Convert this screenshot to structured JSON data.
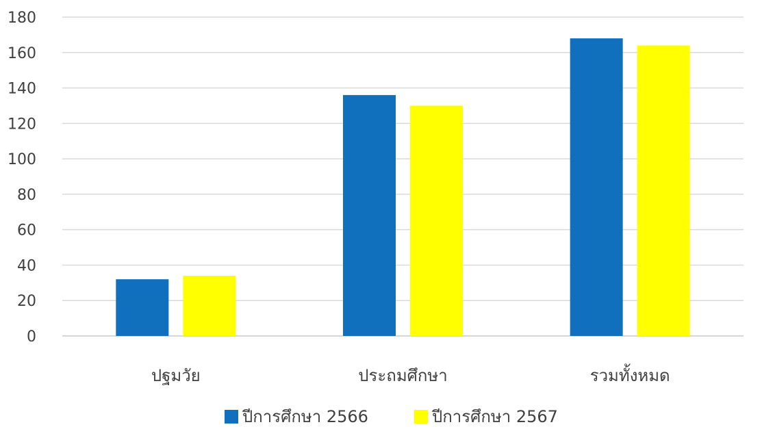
{
  "chart_data": {
    "type": "bar",
    "categories": [
      "ปฐมวัย",
      "ประถมศึกษา",
      "รวมทั้งหมด"
    ],
    "series": [
      {
        "name": "ปีการศึกษา 2566",
        "values": [
          32,
          136,
          168
        ],
        "color": "#1170BD"
      },
      {
        "name": "ปีการศึกษา 2567",
        "values": [
          34,
          130,
          164
        ],
        "color": "#FFFF00"
      }
    ],
    "ylim": [
      0,
      180
    ],
    "yticks": [
      0,
      20,
      40,
      60,
      80,
      100,
      120,
      140,
      160,
      180
    ],
    "grid": true,
    "legend_position": "bottom"
  }
}
